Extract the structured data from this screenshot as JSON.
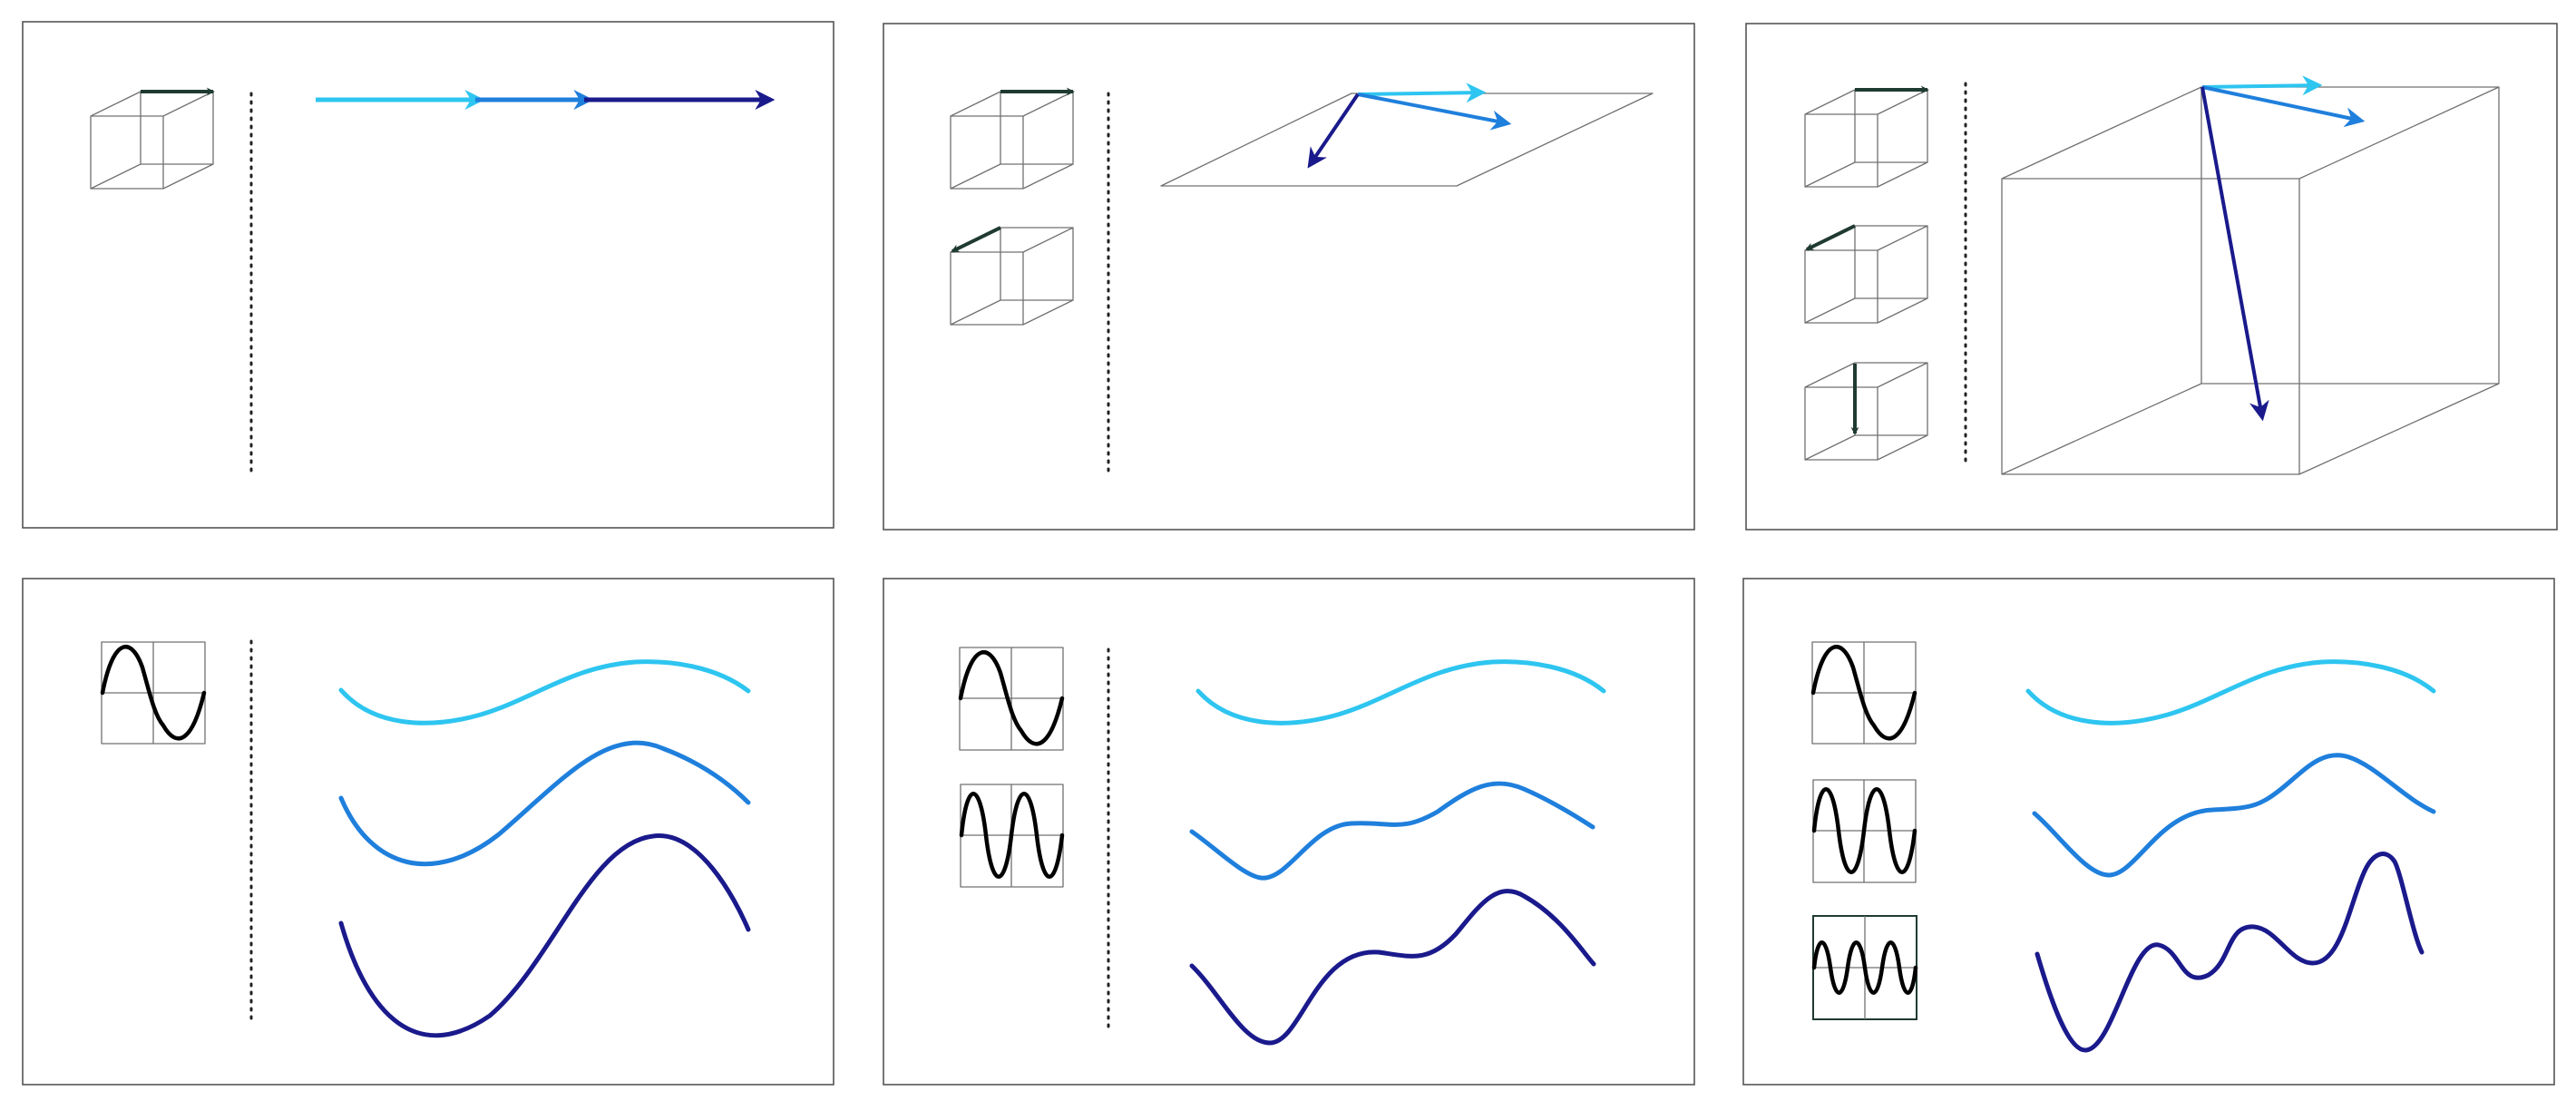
{
  "colors": {
    "light": "#2ec5f0",
    "medium": "#1f7fdc",
    "dark": "#1a1a8c",
    "basis_arrow": "#1f3a32",
    "frame": "#555555",
    "wireframe": "#707070"
  },
  "icons": {
    "cube": "cube-wireframe-icon",
    "sine": "sine-wave-icon"
  },
  "panels": [
    {
      "name": "panel-vectors-1d",
      "kind": "vectors",
      "dimensions": 1
    },
    {
      "name": "panel-vectors-2d",
      "kind": "vectors",
      "dimensions": 2
    },
    {
      "name": "panel-vectors-3d",
      "kind": "vectors",
      "dimensions": 3
    },
    {
      "name": "panel-functions-1",
      "kind": "functions",
      "frequencies": 1
    },
    {
      "name": "panel-functions-2",
      "kind": "functions",
      "frequencies": 2
    },
    {
      "name": "panel-functions-3",
      "kind": "functions",
      "frequencies": 3
    }
  ]
}
